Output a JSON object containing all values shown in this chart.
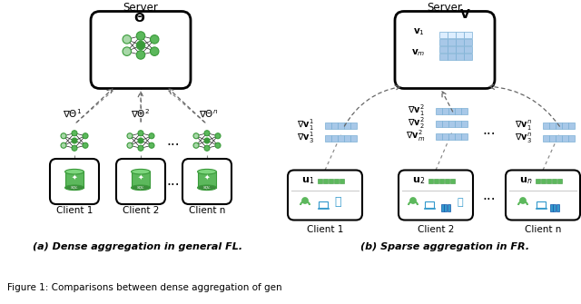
{
  "fig_width": 6.4,
  "fig_height": 3.35,
  "dpi": 100,
  "bg_color": "#ffffff",
  "caption_a": "(a) Dense aggregation in general FL.",
  "caption_b": "(b) Sparse aggregation in FR.",
  "figure_caption": "Figure 1: Comparisons between dense aggregation of gen",
  "green_dark": "#3a9a3a",
  "green_mid": "#5cb85c",
  "green_pale": "#a8d8a8",
  "blue_cell": "#a8c8e8",
  "blue_mid": "#7aaed4",
  "blue_dark": "#3a7aa0",
  "gray_line": "#777777",
  "black": "#111111",
  "box_bg": "#ffffff",
  "box_border": "#222222"
}
